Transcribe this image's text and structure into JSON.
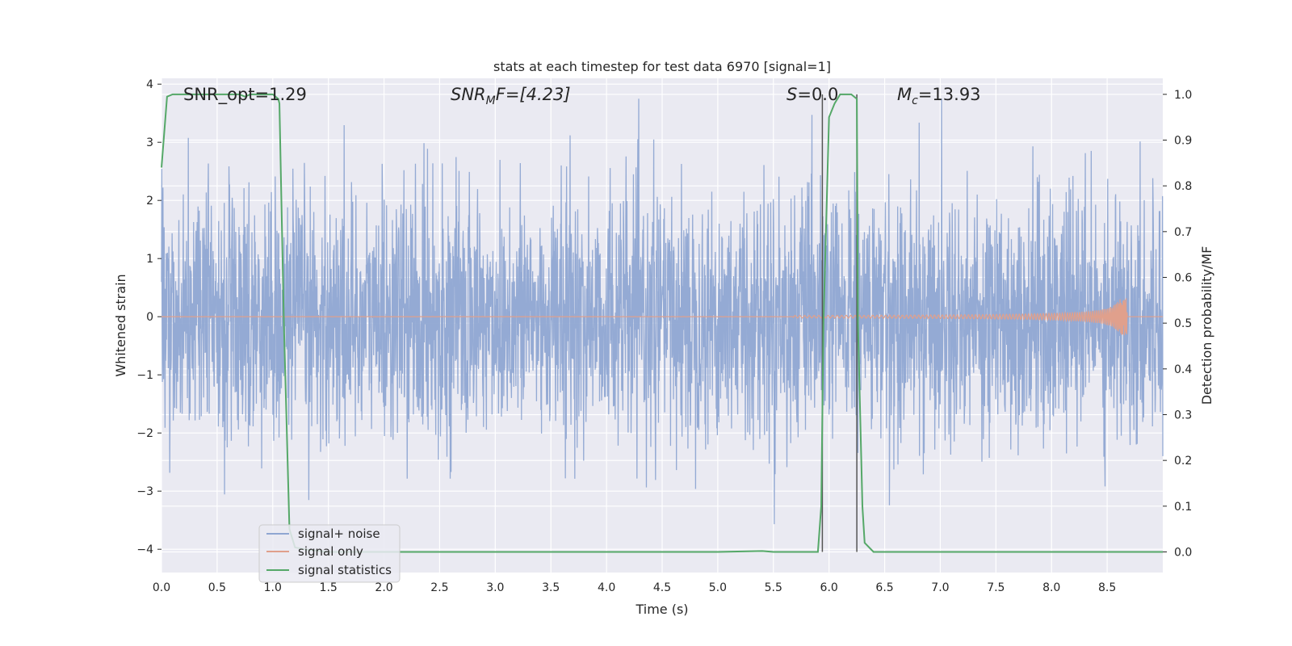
{
  "chart_data": {
    "type": "line",
    "title": "stats at each timestep for test data 6970 [signal=1]",
    "xlabel": "Time (s)",
    "ylabel_left": "Whitened strain",
    "ylabel_right": "Detection probability/MF",
    "xlim": [
      0.0,
      9.0
    ],
    "ylim_left": [
      -4.4,
      4.1
    ],
    "ylim_right": [
      -0.045,
      1.035
    ],
    "x_ticks": [
      "0.0",
      "0.5",
      "1.0",
      "1.5",
      "2.0",
      "2.5",
      "3.0",
      "3.5",
      "4.0",
      "4.5",
      "5.0",
      "5.5",
      "6.0",
      "6.5",
      "7.0",
      "7.5",
      "8.0",
      "8.5"
    ],
    "y_ticks_left": [
      "4",
      "3",
      "2",
      "1",
      "0",
      "−1",
      "−2",
      "−3",
      "−4"
    ],
    "y_ticks_right": [
      "1.0",
      "0.9",
      "0.8",
      "0.7",
      "0.6",
      "0.5",
      "0.4",
      "0.3",
      "0.2",
      "0.1",
      "0.0"
    ],
    "grid": true,
    "annotations": {
      "snr_opt": "SNR_opt=1.29",
      "snr_mf_prefix": "SNR",
      "snr_mf_sub": "M",
      "snr_mf_suffix": "F=[4.23]",
      "s_symbol": "S",
      "s_value": "=0.0",
      "mc_symbol": "M",
      "mc_sub": "c",
      "mc_value": "=13.93"
    },
    "legend": {
      "position": "lower-left",
      "entries": [
        {
          "label": "signal+ noise",
          "color": "#8fa6d2"
        },
        {
          "label": "signal only",
          "color": "#e0a08c"
        },
        {
          "label": "signal statistics",
          "color": "#55a868"
        }
      ]
    },
    "series": [
      {
        "name": "signal+ noise",
        "axis": "left",
        "color": "#8fa6d2",
        "description_values": {
          "typical_range": [
            -2.5,
            2.5
          ],
          "max": 3.75,
          "min": -3.95
        }
      },
      {
        "name": "signal only",
        "axis": "left",
        "color": "#e0a08c",
        "chirp_end_time": 8.68,
        "chirp_max_amplitude": 0.32
      },
      {
        "name": "signal statistics",
        "axis": "right",
        "color": "#55a868",
        "x": [
          0.0,
          0.05,
          0.1,
          0.15,
          0.2,
          0.3,
          0.4,
          0.5,
          0.6,
          0.7,
          0.75,
          0.8,
          0.9,
          1.0,
          1.05,
          1.06,
          1.1,
          1.15,
          1.2,
          1.3,
          1.5,
          2.0,
          3.0,
          4.0,
          5.0,
          5.4,
          5.5,
          5.9,
          5.93,
          5.95,
          6.0,
          6.05,
          6.1,
          6.2,
          6.25,
          6.26,
          6.3,
          6.32,
          6.4,
          7.0,
          8.0,
          9.0
        ],
        "y": [
          0.84,
          0.995,
          1.0,
          1.0,
          1.0,
          1.0,
          1.0,
          1.0,
          1.0,
          1.0,
          0.995,
          1.0,
          1.0,
          1.0,
          0.99,
          0.98,
          0.5,
          0.05,
          0.01,
          0.005,
          0.0,
          0.0,
          0.0,
          0.0,
          0.0,
          0.002,
          0.0,
          0.0,
          0.1,
          0.5,
          0.95,
          0.98,
          1.0,
          1.0,
          0.99,
          0.5,
          0.1,
          0.02,
          0.0,
          0.0,
          0.0,
          0.0
        ]
      }
    ],
    "vertical_lines": [
      {
        "x": 5.94,
        "axis": "right",
        "y_range": [
          0.0,
          1.0
        ],
        "color": "#555555"
      },
      {
        "x": 6.25,
        "axis": "right",
        "y_range": [
          0.0,
          1.0
        ],
        "color": "#555555"
      }
    ]
  }
}
